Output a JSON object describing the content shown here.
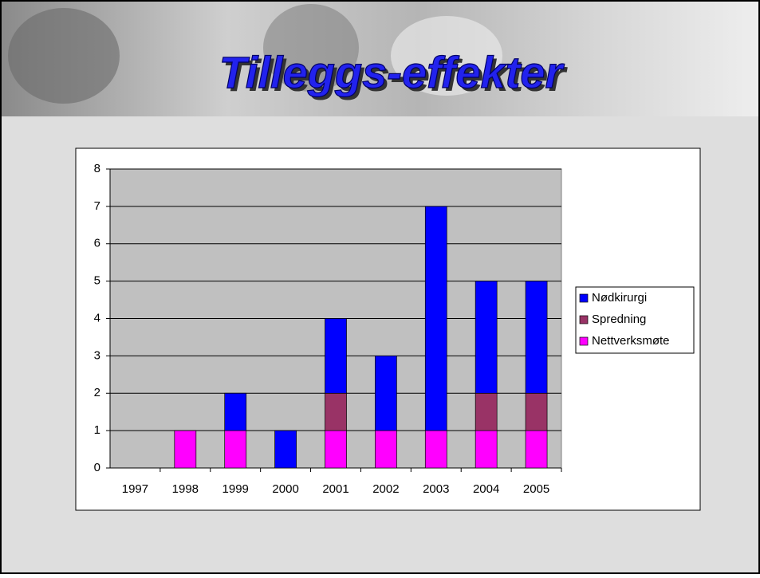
{
  "chart_data": {
    "type": "stacked_bar",
    "title": "Tilleggs-effekter",
    "categories": [
      "1997",
      "1998",
      "1999",
      "2000",
      "2001",
      "2002",
      "2003",
      "2004",
      "2005"
    ],
    "series": [
      {
        "name": "Nettverksmøte",
        "color": "#ff00ff",
        "values": [
          0,
          1,
          1,
          0,
          1,
          1,
          1,
          1,
          1
        ]
      },
      {
        "name": "Spredning",
        "color": "#993366",
        "values": [
          0,
          0,
          0,
          0,
          1,
          0,
          0,
          1,
          1
        ]
      },
      {
        "name": "Nødkirurgi",
        "color": "#0000ff",
        "values": [
          0,
          0,
          1,
          1,
          2,
          2,
          6,
          3,
          3
        ]
      }
    ],
    "ylim": [
      0,
      8
    ],
    "yticks": [
      0,
      1,
      2,
      3,
      4,
      5,
      6,
      7,
      8
    ],
    "grid": true,
    "legend": "right"
  }
}
